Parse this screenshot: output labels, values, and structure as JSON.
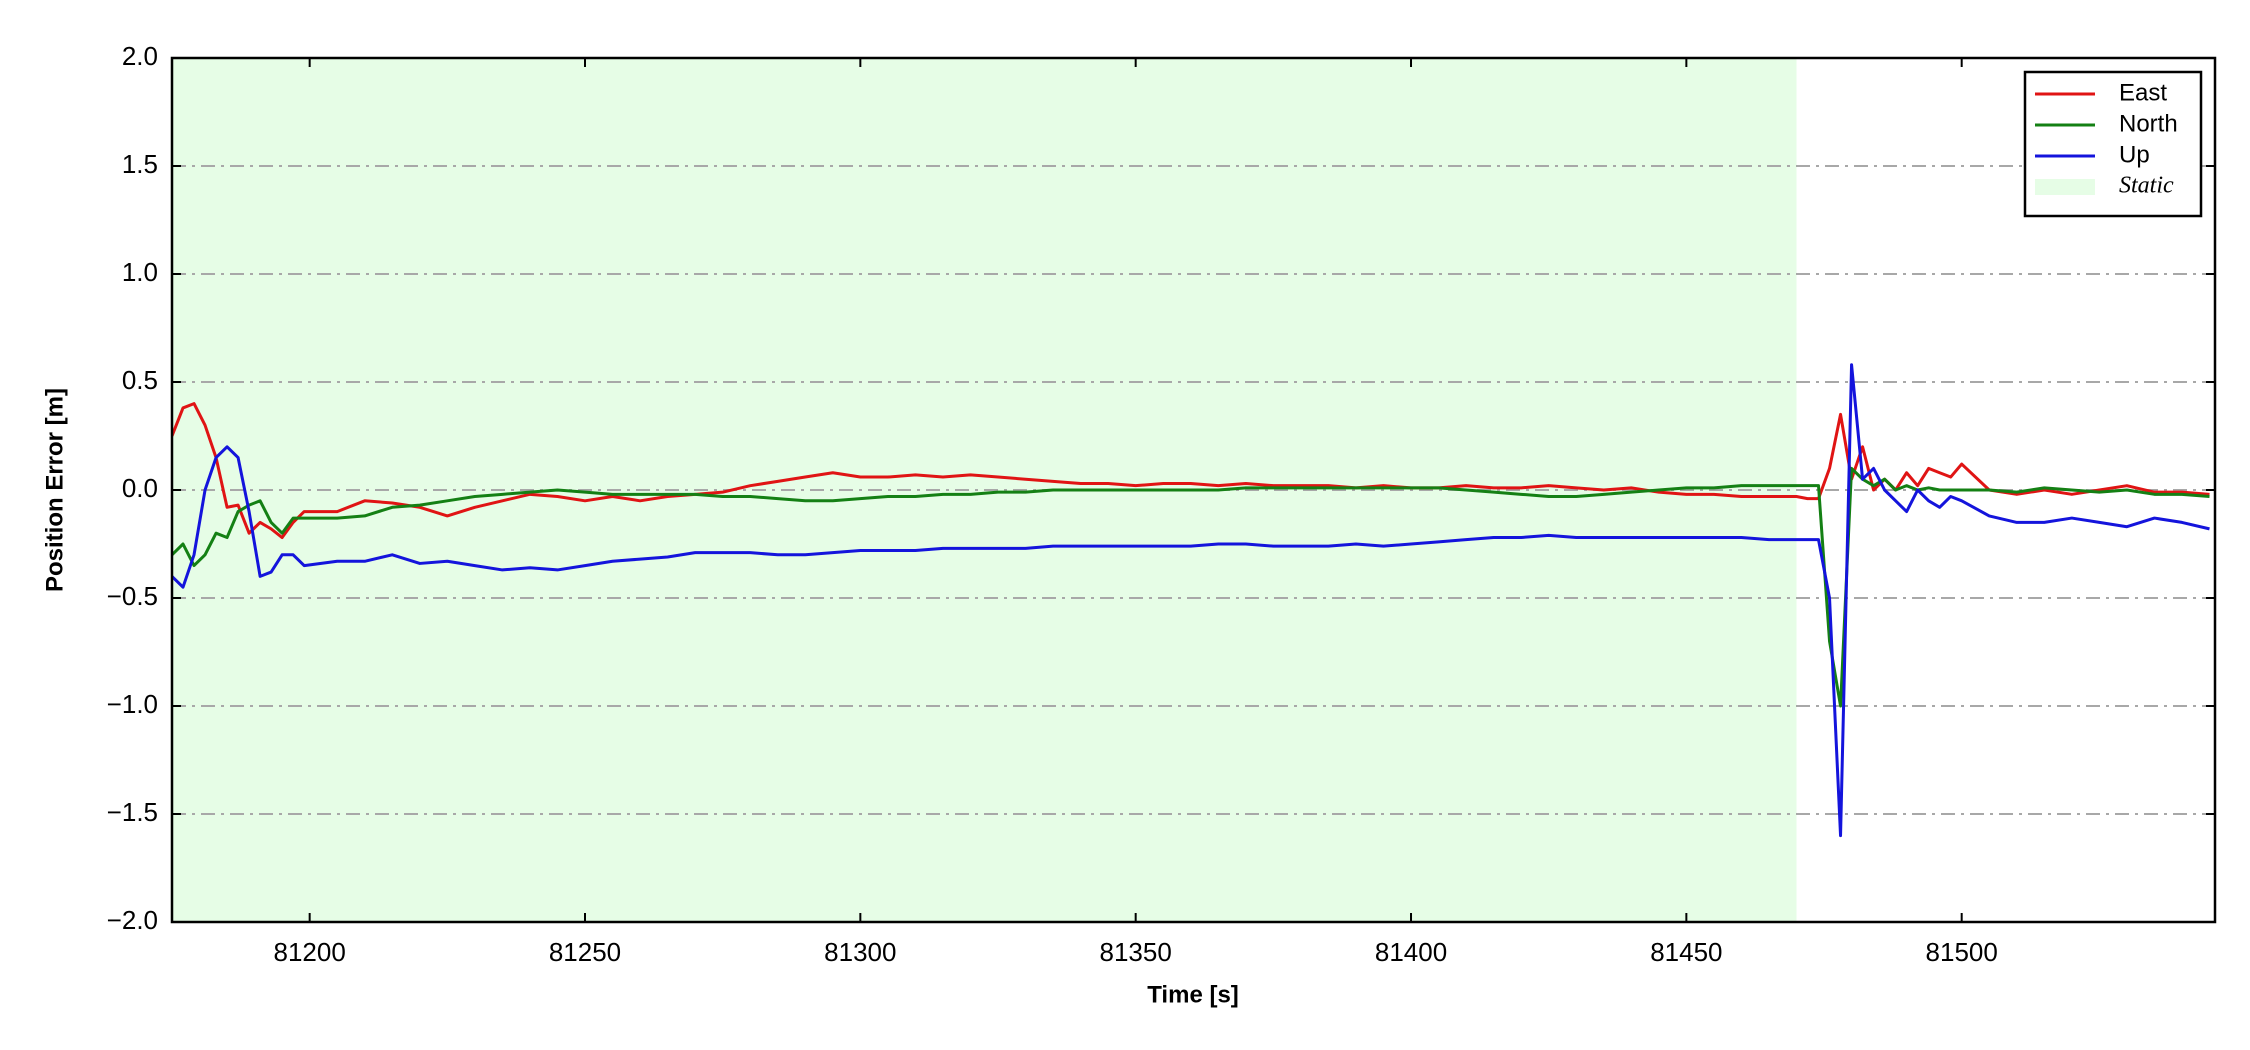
{
  "chart_data": {
    "type": "line",
    "xlabel": "Time [s]",
    "ylabel": "Position Error [m]",
    "xlim": [
      81175,
      81546
    ],
    "ylim": [
      -2,
      2
    ],
    "xticks": [
      81200,
      81250,
      81300,
      81350,
      81400,
      81450,
      81500
    ],
    "yticks": [
      {
        "value": -2,
        "label": "−2.0"
      },
      {
        "value": -1.5,
        "label": "−1.5"
      },
      {
        "value": -1,
        "label": "−1.0"
      },
      {
        "value": -0.5,
        "label": "−0.5"
      },
      {
        "value": 0,
        "label": "0.0"
      },
      0.5,
      {
        "value": 1,
        "label": "1.0"
      },
      1.5,
      {
        "value": 2,
        "label": "2.0"
      }
    ],
    "grid": true,
    "legend": "upper right",
    "spans": [
      {
        "name": "Static",
        "start": 81175,
        "end": 81470,
        "color": "#e6fde6"
      }
    ],
    "x": [
      81175,
      81177,
      81179,
      81181,
      81183,
      81185,
      81187,
      81189,
      81191,
      81193,
      81195,
      81197,
      81199,
      81205,
      81210,
      81215,
      81220,
      81225,
      81230,
      81235,
      81240,
      81245,
      81250,
      81255,
      81260,
      81265,
      81270,
      81275,
      81280,
      81285,
      81290,
      81295,
      81300,
      81305,
      81310,
      81315,
      81320,
      81325,
      81330,
      81335,
      81340,
      81345,
      81350,
      81355,
      81360,
      81365,
      81370,
      81375,
      81380,
      81385,
      81390,
      81395,
      81400,
      81405,
      81410,
      81415,
      81420,
      81425,
      81430,
      81435,
      81440,
      81445,
      81450,
      81455,
      81460,
      81465,
      81470,
      81472,
      81474,
      81476,
      81478,
      81480,
      81482,
      81484,
      81486,
      81488,
      81490,
      81492,
      81494,
      81496,
      81498,
      81500,
      81505,
      81510,
      81515,
      81520,
      81525,
      81530,
      81535,
      81540,
      81545
    ],
    "series": [
      {
        "name": "East",
        "color": "#e01414",
        "values": [
          0.25,
          0.38,
          0.4,
          0.3,
          0.15,
          -0.08,
          -0.07,
          -0.2,
          -0.15,
          -0.18,
          -0.22,
          -0.15,
          -0.1,
          -0.1,
          -0.05,
          -0.06,
          -0.08,
          -0.12,
          -0.08,
          -0.05,
          -0.02,
          -0.03,
          -0.05,
          -0.03,
          -0.05,
          -0.03,
          -0.02,
          -0.01,
          0.02,
          0.04,
          0.06,
          0.08,
          0.06,
          0.06,
          0.07,
          0.06,
          0.07,
          0.06,
          0.05,
          0.04,
          0.03,
          0.03,
          0.02,
          0.03,
          0.03,
          0.02,
          0.03,
          0.02,
          0.02,
          0.02,
          0.01,
          0.02,
          0.01,
          0.01,
          0.02,
          0.01,
          0.01,
          0.02,
          0.01,
          0.0,
          0.01,
          -0.01,
          -0.02,
          -0.02,
          -0.03,
          -0.03,
          -0.03,
          -0.04,
          -0.04,
          0.1,
          0.35,
          0.05,
          0.2,
          0.0,
          0.05,
          0.0,
          0.08,
          0.02,
          0.1,
          0.08,
          0.06,
          0.12,
          0.0,
          -0.02,
          0.0,
          -0.02,
          0.0,
          0.02,
          -0.01,
          -0.01,
          -0.02
        ]
      },
      {
        "name": "North",
        "color": "#148014",
        "values": [
          -0.3,
          -0.25,
          -0.35,
          -0.3,
          -0.2,
          -0.22,
          -0.1,
          -0.07,
          -0.05,
          -0.15,
          -0.2,
          -0.13,
          -0.13,
          -0.13,
          -0.12,
          -0.08,
          -0.07,
          -0.05,
          -0.03,
          -0.02,
          -0.01,
          0.0,
          -0.01,
          -0.02,
          -0.02,
          -0.02,
          -0.02,
          -0.03,
          -0.03,
          -0.04,
          -0.05,
          -0.05,
          -0.04,
          -0.03,
          -0.03,
          -0.02,
          -0.02,
          -0.01,
          -0.01,
          0.0,
          0.0,
          0.0,
          0.0,
          0.0,
          0.0,
          0.0,
          0.01,
          0.01,
          0.01,
          0.01,
          0.01,
          0.01,
          0.01,
          0.01,
          0.0,
          -0.01,
          -0.02,
          -0.03,
          -0.03,
          -0.02,
          -0.01,
          0.0,
          0.01,
          0.01,
          0.02,
          0.02,
          0.02,
          0.02,
          0.02,
          -0.7,
          -1.0,
          0.1,
          0.05,
          0.02,
          0.05,
          0.0,
          0.02,
          0.0,
          0.01,
          0.0,
          0.0,
          0.0,
          0.0,
          -0.01,
          0.01,
          0.0,
          -0.01,
          0.0,
          -0.02,
          -0.02,
          -0.03
        ]
      },
      {
        "name": "Up",
        "color": "#1414dc",
        "values": [
          -0.4,
          -0.45,
          -0.3,
          0.0,
          0.15,
          0.2,
          0.15,
          -0.1,
          -0.4,
          -0.38,
          -0.3,
          -0.3,
          -0.35,
          -0.33,
          -0.33,
          -0.3,
          -0.34,
          -0.33,
          -0.35,
          -0.37,
          -0.36,
          -0.37,
          -0.35,
          -0.33,
          -0.32,
          -0.31,
          -0.29,
          -0.29,
          -0.29,
          -0.3,
          -0.3,
          -0.29,
          -0.28,
          -0.28,
          -0.28,
          -0.27,
          -0.27,
          -0.27,
          -0.27,
          -0.26,
          -0.26,
          -0.26,
          -0.26,
          -0.26,
          -0.26,
          -0.25,
          -0.25,
          -0.26,
          -0.26,
          -0.26,
          -0.25,
          -0.26,
          -0.25,
          -0.24,
          -0.23,
          -0.22,
          -0.22,
          -0.21,
          -0.22,
          -0.22,
          -0.22,
          -0.22,
          -0.22,
          -0.22,
          -0.22,
          -0.23,
          -0.23,
          -0.23,
          -0.23,
          -0.5,
          -1.6,
          0.58,
          0.05,
          0.1,
          0.0,
          -0.05,
          -0.1,
          0.0,
          -0.05,
          -0.08,
          -0.03,
          -0.05,
          -0.12,
          -0.15,
          -0.15,
          -0.13,
          -0.15,
          -0.17,
          -0.13,
          -0.15,
          -0.18
        ]
      }
    ]
  }
}
